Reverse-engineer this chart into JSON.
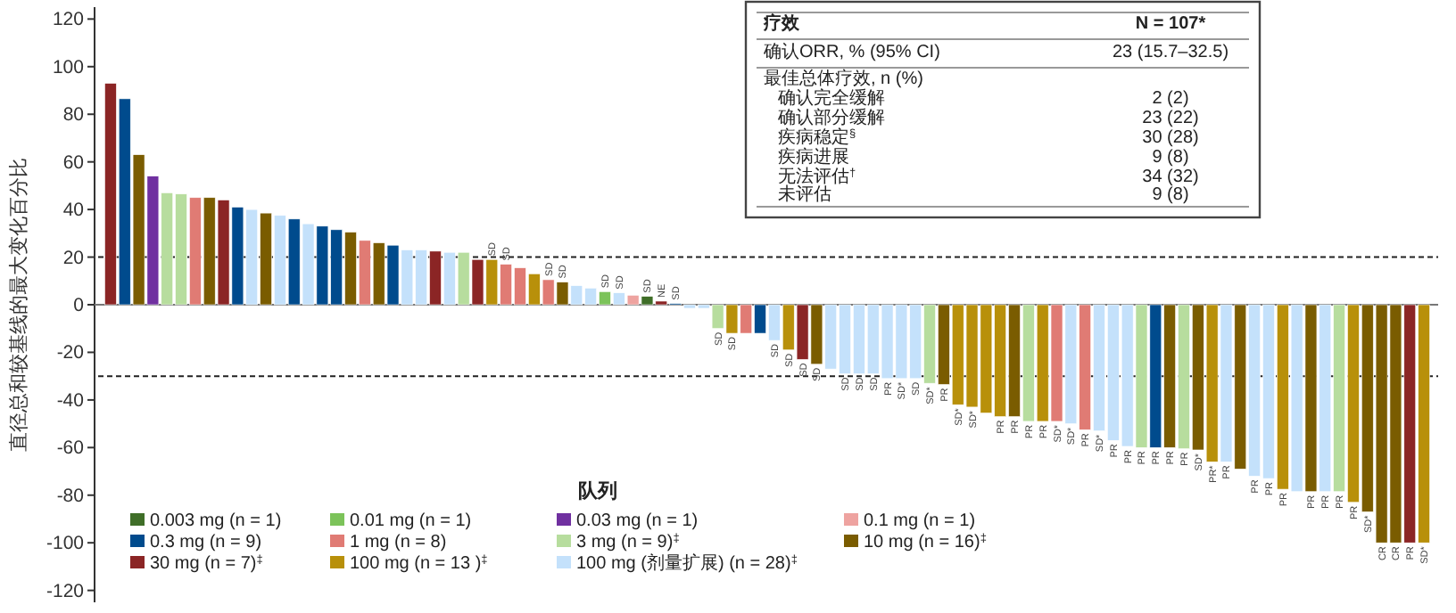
{
  "chart_data": {
    "type": "bar",
    "stacked": true,
    "ylabel": "直径总和较基线的最大变化百分比",
    "legend_title": "队列",
    "legend": "bottom",
    "tick_labels": "y",
    "grid": false,
    "ylim": [
      -125,
      125
    ],
    "yticks": [
      -120,
      -100,
      -80,
      -60,
      -40,
      -20,
      0,
      20,
      40,
      60,
      80,
      100,
      120
    ],
    "categories": [
      null,
      null,
      null,
      null,
      null,
      null,
      null,
      null,
      null,
      null,
      null,
      null,
      null,
      null,
      null,
      null,
      null,
      null,
      null,
      null,
      null,
      null,
      null,
      null,
      null,
      null,
      null,
      null,
      null,
      null,
      null,
      null,
      null,
      null,
      null,
      null,
      null,
      null,
      null,
      null,
      null,
      null,
      null,
      null,
      null,
      null,
      null,
      null,
      null,
      null,
      null,
      null,
      null,
      null,
      null,
      null,
      null,
      null,
      null,
      null,
      null,
      null,
      null,
      null,
      null,
      null,
      null,
      null,
      null,
      null,
      null,
      null,
      null,
      null,
      null,
      null,
      null,
      null,
      null,
      null,
      null,
      null,
      null,
      null,
      null,
      null,
      null,
      null,
      null,
      null,
      null,
      null,
      null,
      null
    ],
    "series": [
      {
        "name": "0.003 mg (n = 1)",
        "color": "#3f6e28",
        "values": [
          null,
          null,
          null,
          null,
          null,
          null,
          null,
          null,
          null,
          null,
          null,
          null,
          null,
          null,
          null,
          null,
          null,
          null,
          null,
          null,
          null,
          null,
          null,
          null,
          null,
          null,
          null,
          null,
          null,
          null,
          null,
          null,
          null,
          null,
          null,
          null,
          null,
          null,
          3.5,
          null,
          null,
          null,
          null,
          null,
          null,
          null,
          null,
          null,
          null,
          null,
          null,
          null,
          null,
          null,
          null,
          null,
          null,
          null,
          null,
          null,
          null,
          null,
          null,
          null,
          null,
          null,
          null,
          null,
          null,
          null,
          null,
          null,
          null,
          null,
          null,
          null,
          null,
          null,
          null,
          null,
          null,
          null,
          null,
          null,
          null,
          null,
          null,
          null,
          null,
          null,
          null,
          null,
          null,
          null
        ]
      },
      {
        "name": "0.01 mg (n = 1)",
        "color": "#7cc35a",
        "values": [
          null,
          null,
          null,
          null,
          null,
          null,
          null,
          null,
          null,
          null,
          null,
          null,
          null,
          null,
          null,
          null,
          null,
          null,
          null,
          null,
          null,
          null,
          null,
          null,
          null,
          null,
          null,
          null,
          null,
          null,
          null,
          null,
          null,
          null,
          null,
          5.5,
          null,
          null,
          null,
          null,
          null,
          null,
          null,
          null,
          null,
          null,
          null,
          null,
          null,
          null,
          null,
          null,
          null,
          null,
          null,
          null,
          null,
          null,
          null,
          null,
          null,
          null,
          null,
          null,
          null,
          null,
          null,
          null,
          null,
          null,
          null,
          null,
          null,
          null,
          null,
          null,
          null,
          null,
          null,
          null,
          null,
          null,
          null,
          null,
          null,
          null,
          null,
          null,
          null,
          null,
          null,
          null,
          null,
          null
        ]
      },
      {
        "name": "0.03 mg (n = 1)",
        "color": "#7030a0",
        "values": [
          null,
          null,
          null,
          54,
          null,
          null,
          null,
          null,
          null,
          null,
          null,
          null,
          null,
          null,
          null,
          null,
          null,
          null,
          null,
          null,
          null,
          null,
          null,
          null,
          null,
          null,
          null,
          null,
          null,
          null,
          null,
          null,
          null,
          null,
          null,
          null,
          null,
          null,
          null,
          null,
          null,
          null,
          null,
          null,
          null,
          null,
          null,
          null,
          null,
          null,
          null,
          null,
          null,
          null,
          null,
          null,
          null,
          null,
          null,
          null,
          null,
          null,
          null,
          null,
          null,
          null,
          null,
          null,
          null,
          null,
          null,
          null,
          null,
          null,
          null,
          null,
          null,
          null,
          null,
          null,
          null,
          null,
          null,
          null,
          null,
          null,
          null,
          null,
          null,
          null,
          null,
          null,
          null,
          null
        ]
      },
      {
        "name": "0.1 mg (n = 1)",
        "color": "#eea3a0",
        "values": [
          null,
          null,
          null,
          null,
          null,
          null,
          null,
          null,
          null,
          null,
          null,
          null,
          null,
          null,
          null,
          null,
          null,
          null,
          null,
          null,
          null,
          null,
          null,
          null,
          null,
          null,
          null,
          null,
          null,
          null,
          null,
          null,
          null,
          null,
          null,
          null,
          null,
          4,
          null,
          null,
          null,
          null,
          null,
          null,
          null,
          null,
          null,
          null,
          null,
          null,
          null,
          null,
          null,
          null,
          null,
          null,
          null,
          null,
          null,
          null,
          null,
          null,
          null,
          null,
          null,
          null,
          null,
          null,
          null,
          null,
          null,
          null,
          null,
          null,
          null,
          null,
          null,
          null,
          null,
          null,
          null,
          null,
          null,
          null,
          null,
          null,
          null,
          null,
          null,
          null,
          null,
          null,
          null,
          null
        ]
      },
      {
        "name": "0.3 mg (n = 9)",
        "color": "#004b8d",
        "values": [
          null,
          86.5,
          null,
          null,
          null,
          null,
          null,
          null,
          null,
          41,
          null,
          null,
          null,
          36,
          null,
          33,
          31.5,
          null,
          null,
          null,
          25,
          null,
          null,
          null,
          null,
          null,
          null,
          null,
          null,
          null,
          null,
          null,
          null,
          null,
          null,
          null,
          null,
          null,
          null,
          null,
          0.5,
          null,
          null,
          null,
          null,
          null,
          -12,
          null,
          null,
          null,
          null,
          null,
          null,
          null,
          null,
          null,
          null,
          null,
          null,
          null,
          null,
          null,
          null,
          null,
          null,
          null,
          null,
          null,
          null,
          null,
          null,
          null,
          null,
          null,
          -60,
          null,
          null,
          null,
          null,
          null,
          null,
          null,
          null,
          null,
          null,
          null,
          null,
          null,
          null,
          null,
          null,
          null,
          null,
          null
        ]
      },
      {
        "name": "1 mg (n = 8)",
        "color": "#e07b74",
        "values": [
          null,
          null,
          null,
          null,
          null,
          null,
          45,
          null,
          null,
          null,
          null,
          null,
          null,
          null,
          null,
          null,
          null,
          null,
          27,
          null,
          null,
          null,
          null,
          null,
          null,
          null,
          null,
          null,
          17,
          15.5,
          null,
          10.5,
          null,
          null,
          null,
          null,
          null,
          null,
          null,
          null,
          null,
          null,
          null,
          null,
          null,
          -12,
          null,
          null,
          null,
          null,
          null,
          null,
          null,
          null,
          null,
          null,
          null,
          null,
          null,
          null,
          null,
          null,
          null,
          null,
          null,
          null,
          null,
          -49,
          null,
          -52.5,
          null,
          null,
          null,
          null,
          null,
          null,
          null,
          null,
          null,
          null,
          null,
          null,
          null,
          null,
          null,
          null,
          null,
          null,
          null,
          null,
          null,
          null,
          null,
          null
        ]
      },
      {
        "name": "3 mg (n = 9)$^{‡}$",
        "color": "#b7dd9e",
        "values": [
          null,
          null,
          null,
          null,
          47,
          46.5,
          null,
          null,
          null,
          null,
          null,
          null,
          null,
          null,
          null,
          null,
          null,
          null,
          null,
          null,
          null,
          null,
          null,
          null,
          null,
          22,
          null,
          null,
          null,
          null,
          null,
          null,
          null,
          null,
          null,
          null,
          null,
          null,
          null,
          null,
          null,
          null,
          null,
          -10,
          null,
          null,
          null,
          null,
          null,
          null,
          null,
          null,
          null,
          null,
          null,
          null,
          null,
          null,
          -33,
          null,
          null,
          null,
          null,
          null,
          null,
          -49,
          null,
          null,
          null,
          null,
          null,
          null,
          null,
          -60,
          null,
          null,
          -60.5,
          null,
          null,
          null,
          null,
          null,
          null,
          null,
          null,
          null,
          null,
          -78.5,
          null,
          null,
          null,
          null,
          null,
          null
        ]
      },
      {
        "name": "10 mg (n = 16)$^{‡}$",
        "color": "#7a5c00",
        "values": [
          null,
          null,
          63,
          null,
          null,
          null,
          null,
          45,
          null,
          null,
          null,
          38.5,
          null,
          null,
          null,
          null,
          null,
          30.5,
          null,
          26,
          null,
          null,
          null,
          null,
          null,
          null,
          null,
          null,
          null,
          null,
          null,
          null,
          9.5,
          null,
          null,
          null,
          null,
          null,
          null,
          null,
          null,
          null,
          null,
          null,
          null,
          null,
          null,
          null,
          null,
          null,
          -25,
          null,
          null,
          null,
          null,
          null,
          null,
          null,
          null,
          -33.5,
          null,
          null,
          null,
          null,
          -47,
          null,
          null,
          null,
          null,
          null,
          null,
          null,
          null,
          null,
          null,
          -60,
          null,
          -61,
          null,
          null,
          -69,
          null,
          null,
          null,
          null,
          -78.5,
          null,
          null,
          null,
          -87,
          -100,
          -100,
          null,
          null
        ]
      },
      {
        "name": "30 mg (n = 7)$^{‡}$",
        "color": "#8b2525",
        "values": [
          93,
          null,
          null,
          null,
          null,
          null,
          null,
          null,
          44,
          null,
          null,
          null,
          null,
          null,
          null,
          null,
          null,
          null,
          null,
          null,
          null,
          null,
          null,
          22.5,
          null,
          null,
          19,
          null,
          null,
          null,
          null,
          null,
          null,
          null,
          null,
          null,
          null,
          null,
          null,
          1.5,
          null,
          null,
          null,
          null,
          null,
          null,
          null,
          null,
          null,
          -23,
          null,
          null,
          null,
          null,
          null,
          null,
          null,
          null,
          null,
          null,
          null,
          null,
          null,
          null,
          null,
          null,
          null,
          null,
          null,
          null,
          null,
          null,
          null,
          null,
          null,
          null,
          null,
          null,
          null,
          null,
          null,
          null,
          null,
          null,
          null,
          null,
          null,
          null,
          null,
          null,
          null,
          null,
          -100,
          null
        ]
      },
      {
        "name": "100 mg (n = 13 )$^{‡}$",
        "color": "#b8900a",
        "values": [
          null,
          null,
          null,
          null,
          null,
          null,
          null,
          null,
          null,
          null,
          null,
          null,
          null,
          null,
          null,
          null,
          null,
          null,
          null,
          null,
          null,
          null,
          null,
          null,
          null,
          null,
          null,
          19,
          null,
          null,
          13,
          null,
          null,
          null,
          null,
          null,
          null,
          null,
          null,
          null,
          null,
          null,
          null,
          null,
          -12,
          null,
          null,
          null,
          -19,
          null,
          null,
          null,
          null,
          null,
          null,
          null,
          null,
          null,
          null,
          null,
          -42,
          -43,
          -45.5,
          -47,
          null,
          null,
          -49,
          null,
          null,
          null,
          null,
          null,
          null,
          null,
          null,
          null,
          null,
          null,
          -66,
          null,
          null,
          null,
          null,
          -77.5,
          null,
          null,
          null,
          null,
          -83,
          null,
          null,
          null,
          null,
          -100
        ]
      },
      {
        "name": "100 mg (剂量扩展) (n = 28)$^{‡}$",
        "color": "#c4e1fb",
        "values": [
          null,
          null,
          null,
          null,
          null,
          null,
          null,
          null,
          null,
          null,
          40,
          null,
          37.5,
          null,
          34,
          null,
          null,
          null,
          null,
          null,
          null,
          23,
          23,
          null,
          22,
          null,
          null,
          null,
          null,
          null,
          null,
          null,
          null,
          8,
          7,
          null,
          5,
          null,
          null,
          null,
          null,
          -1.5,
          -1.5,
          null,
          null,
          null,
          null,
          -15,
          null,
          null,
          null,
          -27,
          -29,
          -29,
          -29,
          -31,
          -31,
          -31,
          null,
          null,
          null,
          null,
          null,
          null,
          null,
          null,
          null,
          null,
          -50,
          null,
          -53,
          -57,
          -59.5,
          null,
          null,
          null,
          null,
          null,
          null,
          -66,
          null,
          -72,
          -73,
          null,
          -78.5,
          null,
          -78.5,
          null,
          null,
          null,
          null,
          null,
          null,
          null
        ]
      }
    ],
    "value_labels": [
      null,
      null,
      null,
      null,
      null,
      null,
      null,
      null,
      null,
      null,
      null,
      null,
      null,
      null,
      null,
      null,
      null,
      null,
      null,
      null,
      null,
      null,
      null,
      null,
      null,
      null,
      null,
      "SD",
      "SD",
      null,
      null,
      "SD",
      "SD",
      null,
      null,
      "SD",
      "SD",
      null,
      "SD",
      "NE",
      "SD",
      null,
      null,
      "SD",
      "SD",
      null,
      null,
      "SD",
      "SD",
      "SD",
      "SD",
      null,
      "SD",
      "SD",
      "SD",
      "PR",
      "SD*",
      "SD",
      "SD*",
      "PR",
      "SD*",
      "SD*",
      null,
      "PR",
      "PR",
      "PR",
      "PR",
      "SD*",
      "SD*",
      "PR",
      "SD*",
      "PR",
      "PR",
      "PR",
      "PR",
      "PR",
      "PR",
      "SD*",
      "PR*",
      "PR",
      null,
      "PR",
      "PR",
      "PR",
      null,
      "PR",
      "PR",
      "PR",
      "PR",
      "SD*",
      "CR",
      "CR",
      "PR",
      "SD*"
    ],
    "ref_lines": [
      {
        "axis": "y",
        "value": 20,
        "line_style": "dashed"
      },
      {
        "axis": "y",
        "value": -30,
        "line_style": "dashed"
      }
    ],
    "annotations": [
      "疗效",
      "N = 107*",
      "确认ORR, % (95% CI)",
      "23 (15.7–32.5)",
      "最佳总体疗效, n (%)",
      "确认完全缓解",
      "2 (2)",
      "确认部分缓解",
      "23 (22)",
      "疾病稳定$^{§}$",
      "30 (28)",
      "疾病进展",
      "9 (8)",
      "无法评估$^{†}$",
      "34 (32)",
      "未评估",
      "9 (8)"
    ]
  }
}
